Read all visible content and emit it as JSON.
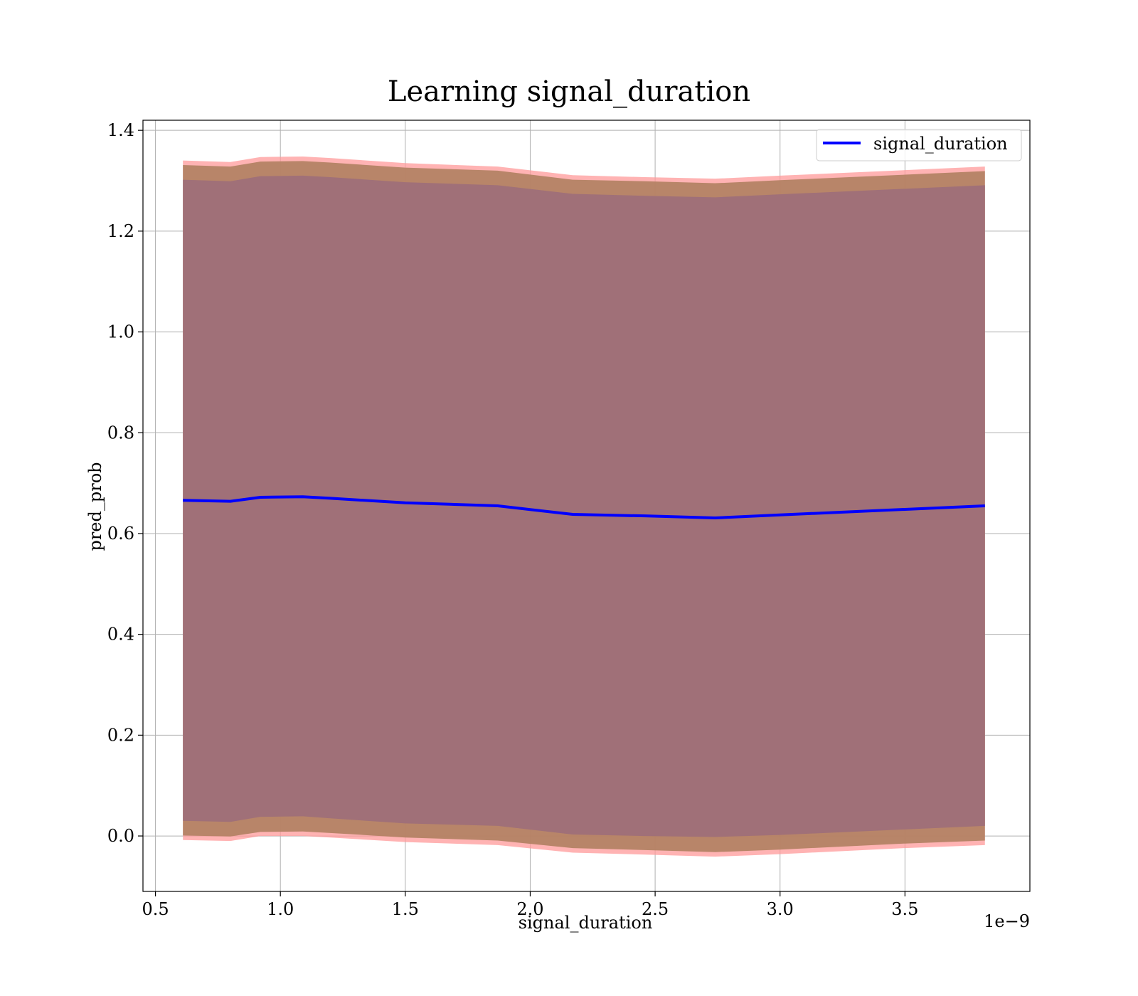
{
  "chart_data": {
    "type": "line",
    "title": "Learning signal_duration",
    "xlabel": "signal_duration",
    "ylabel": "pred_prob",
    "x_offset_label": "1e−9",
    "xlim": [
      0.45,
      4.0
    ],
    "ylim": [
      -0.11,
      1.42
    ],
    "x_ticks": [
      0.5,
      1.0,
      1.5,
      2.0,
      2.5,
      3.0,
      3.5
    ],
    "x_tick_labels": [
      "0.5",
      "1.0",
      "1.5",
      "2.0",
      "2.5",
      "3.0",
      "3.5"
    ],
    "y_ticks": [
      0.0,
      0.2,
      0.4,
      0.6,
      0.8,
      1.0,
      1.2,
      1.4
    ],
    "y_tick_labels": [
      "0.0",
      "0.2",
      "0.4",
      "0.6",
      "0.8",
      "1.0",
      "1.2",
      "1.4"
    ],
    "grid": true,
    "legend_position": "top-right",
    "x": [
      0.61,
      0.8,
      0.92,
      1.09,
      1.2,
      1.5,
      1.87,
      2.17,
      2.46,
      2.74,
      3.0,
      3.5,
      3.82
    ],
    "series": [
      {
        "name": "signal_duration",
        "color": "#0000ff",
        "values": [
          0.666,
          0.664,
          0.672,
          0.673,
          0.67,
          0.661,
          0.655,
          0.638,
          0.635,
          0.631,
          0.637,
          0.648,
          0.655
        ]
      }
    ],
    "bands": [
      {
        "color": "#ff9999",
        "opacity": 0.75,
        "upper": [
          1.34,
          1.337,
          1.347,
          1.348,
          1.345,
          1.335,
          1.328,
          1.311,
          1.307,
          1.304,
          1.31,
          1.321,
          1.328
        ],
        "lower": [
          -0.008,
          -0.01,
          0.0,
          0.0,
          -0.003,
          -0.012,
          -0.018,
          -0.033,
          -0.037,
          -0.041,
          -0.036,
          -0.024,
          -0.018
        ]
      },
      {
        "color": "#b08060",
        "opacity": 0.9,
        "upper": [
          1.331,
          1.328,
          1.338,
          1.339,
          1.336,
          1.326,
          1.32,
          1.302,
          1.299,
          1.295,
          1.301,
          1.312,
          1.319
        ],
        "lower": [
          0.001,
          -0.001,
          0.008,
          0.009,
          0.006,
          -0.003,
          -0.009,
          -0.024,
          -0.028,
          -0.032,
          -0.027,
          -0.015,
          -0.009
        ]
      },
      {
        "color": "#a07078",
        "opacity": 1.0,
        "upper": [
          1.302,
          1.299,
          1.309,
          1.31,
          1.307,
          1.297,
          1.291,
          1.274,
          1.27,
          1.267,
          1.273,
          1.284,
          1.291
        ],
        "lower": [
          0.03,
          0.028,
          0.038,
          0.039,
          0.035,
          0.025,
          0.02,
          0.003,
          0.0,
          -0.002,
          0.002,
          0.013,
          0.02
        ]
      }
    ]
  }
}
